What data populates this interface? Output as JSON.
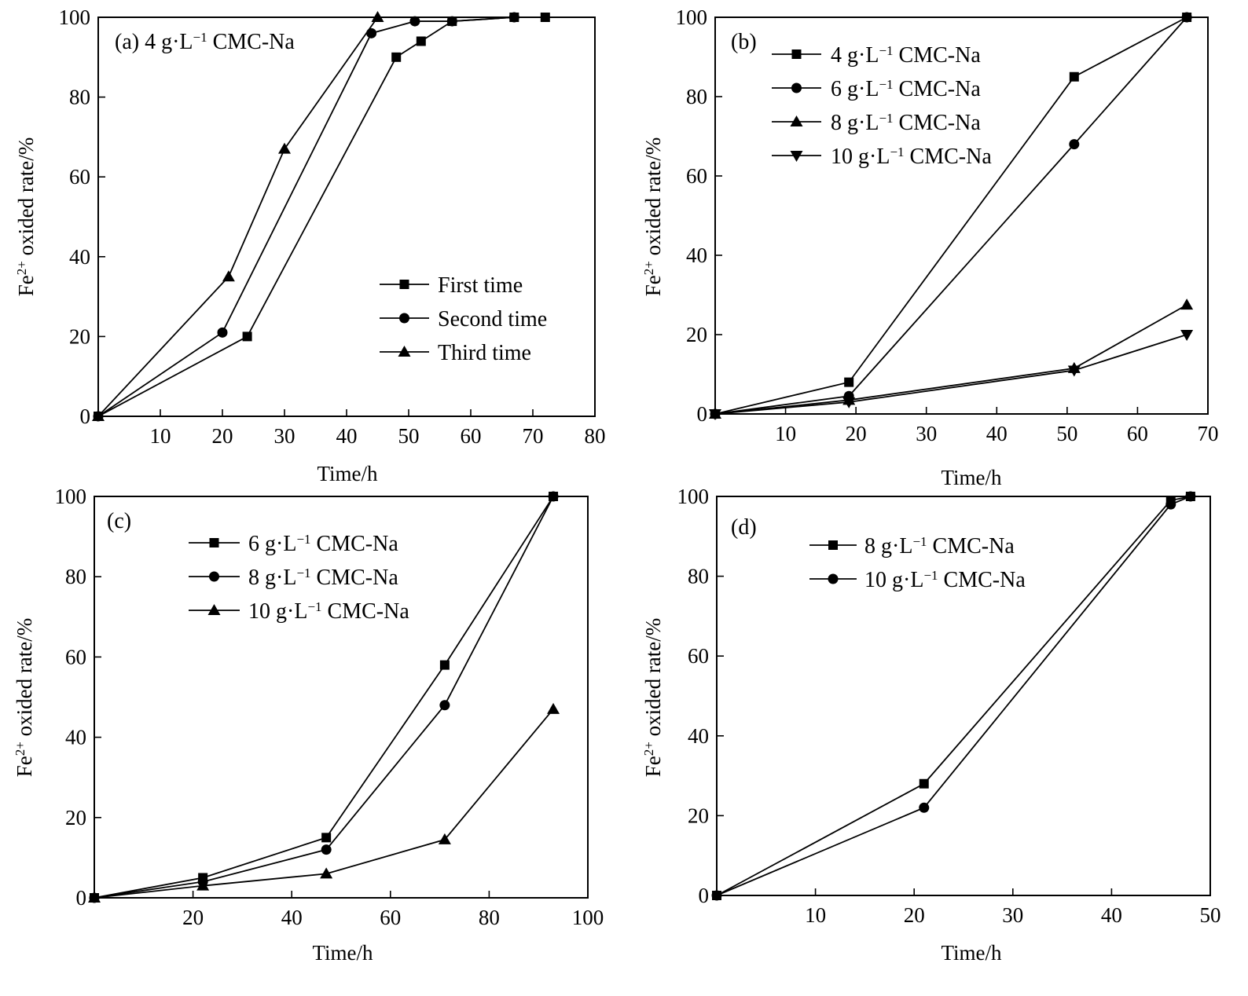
{
  "chart_data": [
    {
      "type": "line",
      "panel": "a",
      "annotation": {
        "prefix": "(a)  4 g·L",
        "sup": "−1",
        "suffix": " CMC-Na"
      },
      "xlabel": "Time/h",
      "ylabel": {
        "main": "Fe",
        "sup": "2+",
        "rest": " oxided rate/%"
      },
      "xlim": [
        0,
        80
      ],
      "ylim": [
        0,
        100
      ],
      "xticks": [
        10,
        20,
        30,
        40,
        50,
        60,
        70,
        80
      ],
      "yticks": [
        0,
        20,
        40,
        60,
        80,
        100
      ],
      "legend_position": "center-right",
      "series": [
        {
          "label": {
            "prefix": "First time"
          },
          "marker": "square",
          "x": [
            0,
            24,
            48,
            52,
            57,
            67,
            72
          ],
          "y": [
            0,
            20,
            90,
            94,
            99,
            100,
            100
          ]
        },
        {
          "label": {
            "prefix": "Second time"
          },
          "marker": "circle",
          "x": [
            0,
            20,
            44,
            51,
            57,
            67
          ],
          "y": [
            0,
            21,
            96,
            99,
            99,
            100
          ]
        },
        {
          "label": {
            "prefix": "Third time"
          },
          "marker": "triangle-up",
          "x": [
            0,
            21,
            30,
            45
          ],
          "y": [
            0,
            35,
            67,
            100
          ]
        }
      ]
    },
    {
      "type": "line",
      "panel": "b",
      "annotation": {
        "prefix": "(b)"
      },
      "xlabel": "Time/h",
      "ylabel": {
        "main": "Fe",
        "sup": "2+",
        "rest": " oxided rate/%"
      },
      "xlim": [
        0,
        70
      ],
      "ylim": [
        0,
        100
      ],
      "xticks": [
        10,
        20,
        30,
        40,
        50,
        60,
        70
      ],
      "yticks": [
        0,
        20,
        40,
        60,
        80,
        100
      ],
      "legend_position": "top-left",
      "series": [
        {
          "label": {
            "prefix": "4 g·L",
            "sup": "−1",
            "suffix": " CMC-Na"
          },
          "marker": "square",
          "x": [
            0,
            19,
            51,
            67
          ],
          "y": [
            0,
            8,
            85,
            100
          ]
        },
        {
          "label": {
            "prefix": "6 g·L",
            "sup": "−1",
            "suffix": " CMC-Na"
          },
          "marker": "circle",
          "x": [
            0,
            19,
            51,
            67
          ],
          "y": [
            0,
            4.5,
            68,
            100
          ]
        },
        {
          "label": {
            "prefix": "8 g·L",
            "sup": "−1",
            "suffix": " CMC-Na"
          },
          "marker": "triangle-up",
          "x": [
            0,
            19,
            51,
            67
          ],
          "y": [
            0,
            3.5,
            11.5,
            27.5
          ]
        },
        {
          "label": {
            "prefix": "10 g·L",
            "sup": "−1",
            "suffix": " CMC-Na"
          },
          "marker": "triangle-down",
          "x": [
            0,
            19,
            51,
            67
          ],
          "y": [
            0,
            3,
            11,
            20
          ]
        }
      ]
    },
    {
      "type": "line",
      "panel": "c",
      "annotation": {
        "prefix": "(c)"
      },
      "xlabel": "Time/h",
      "ylabel": {
        "main": "Fe",
        "sup": "2+",
        "rest": " oxided rate/%"
      },
      "xlim": [
        0,
        100
      ],
      "ylim": [
        0,
        100
      ],
      "xticks": [
        20,
        40,
        60,
        80,
        100
      ],
      "yticks": [
        0,
        20,
        40,
        60,
        80,
        100
      ],
      "legend_position": "top-left",
      "series": [
        {
          "label": {
            "prefix": "6 g·L",
            "sup": "−1",
            "suffix": " CMC-Na"
          },
          "marker": "square",
          "x": [
            0,
            22,
            47,
            71,
            93
          ],
          "y": [
            0,
            5,
            15,
            58,
            100
          ]
        },
        {
          "label": {
            "prefix": "8 g·L",
            "sup": "−1",
            "suffix": " CMC-Na"
          },
          "marker": "circle",
          "x": [
            0,
            22,
            47,
            71,
            93
          ],
          "y": [
            0,
            4,
            12,
            48,
            100
          ]
        },
        {
          "label": {
            "prefix": "10 g·L",
            "sup": "−1",
            "suffix": " CMC-Na"
          },
          "marker": "triangle-up",
          "x": [
            0,
            22,
            47,
            71,
            93
          ],
          "y": [
            0,
            3,
            6,
            14.5,
            47
          ]
        }
      ]
    },
    {
      "type": "line",
      "panel": "d",
      "annotation": {
        "prefix": "(d)"
      },
      "xlabel": "Time/h",
      "ylabel": {
        "main": "Fe",
        "sup": "2+",
        "rest": " oxided rate/%"
      },
      "xlim": [
        0,
        50
      ],
      "ylim": [
        0,
        100
      ],
      "xticks": [
        10,
        20,
        30,
        40,
        50
      ],
      "yticks": [
        0,
        20,
        40,
        60,
        80,
        100
      ],
      "legend_position": "top-left",
      "series": [
        {
          "label": {
            "prefix": "8 g·L",
            "sup": "−1",
            "suffix": " CMC-Na"
          },
          "marker": "square",
          "x": [
            0,
            21,
            46,
            48
          ],
          "y": [
            0,
            28,
            99,
            100
          ]
        },
        {
          "label": {
            "prefix": "10 g·L",
            "sup": "−1",
            "suffix": " CMC-Na"
          },
          "marker": "circle",
          "x": [
            0,
            21,
            46,
            48
          ],
          "y": [
            0,
            22,
            98,
            100
          ]
        }
      ]
    }
  ]
}
